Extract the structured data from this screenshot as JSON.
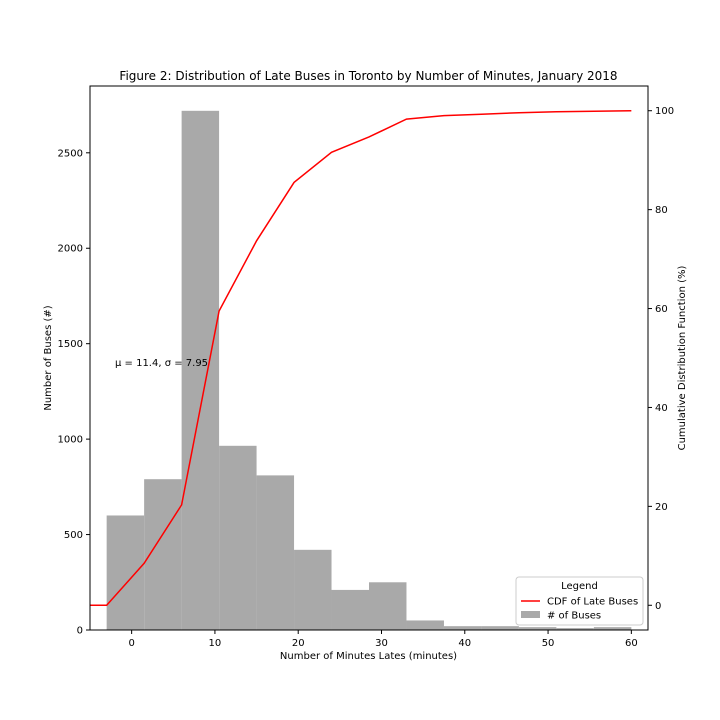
{
  "chart_data": {
    "type": "bar",
    "title": "Figure 2: Distribution of Late Buses in Toronto by Number of Minutes, January 2018",
    "xlabel": "Number of Minutes Lates (minutes)",
    "ylabel": "Number of Buses (#)",
    "y2label": "Cumulative Distribution Function (%)",
    "xlim": [
      -5,
      62
    ],
    "ylim": [
      0,
      2850
    ],
    "y2lim": [
      -5,
      105
    ],
    "xticks": [
      0,
      10,
      20,
      30,
      40,
      50,
      60
    ],
    "yticks": [
      0,
      500,
      1000,
      1500,
      2000,
      2500
    ],
    "y2ticks": [
      0,
      20,
      40,
      60,
      80,
      100
    ],
    "annotation": "μ = 11.4,  σ = 7.95",
    "annotation_pos": {
      "x": -2,
      "y": 1400
    },
    "histogram": {
      "name": "# of Buses",
      "color": "#a9a9a9",
      "bin_edges": [
        -3,
        1.5,
        6,
        10.5,
        15,
        19.5,
        24,
        28.5,
        33,
        37.5,
        42,
        46.5,
        51,
        55.5,
        60
      ],
      "values": [
        600,
        790,
        2720,
        965,
        810,
        420,
        210,
        250,
        50,
        20,
        20,
        15,
        10,
        15
      ]
    },
    "cdf": {
      "name": "CDF of Late Buses",
      "color": "#ff0000",
      "x": [
        -5,
        -3,
        1.5,
        6,
        10.5,
        15,
        19.5,
        24,
        28.5,
        33,
        37.5,
        42,
        46.5,
        51,
        55.5,
        60
      ],
      "y": [
        0,
        0,
        8.5,
        20.3,
        59.5,
        73.7,
        85.5,
        91.6,
        94.7,
        98.3,
        99.0,
        99.3,
        99.6,
        99.8,
        99.9,
        100
      ]
    },
    "legend": {
      "title": "Legend",
      "position": "bottom-right",
      "entries": [
        "CDF of Late Buses",
        "# of Buses"
      ]
    },
    "grid": false
  }
}
